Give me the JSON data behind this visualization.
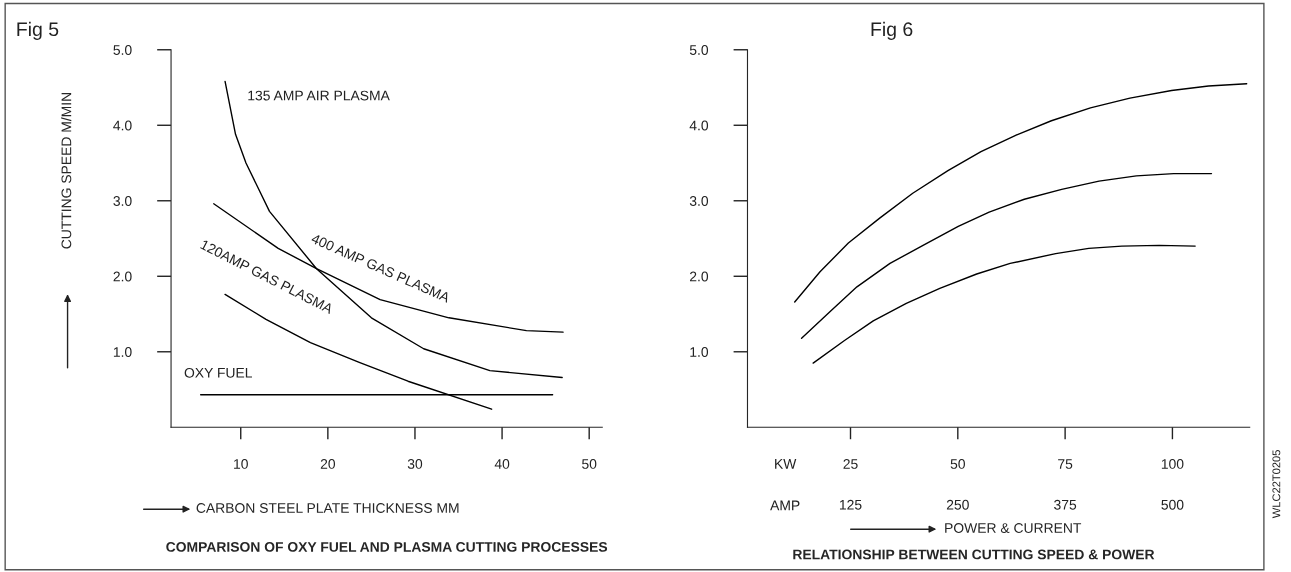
{
  "chart_data": [
    {
      "type": "line",
      "title": "COMPARISON OF OXY FUEL AND PLASMA CUTTING PROCESSES",
      "xlabel": "CARBON STEEL PLATE THICKNESS MM",
      "ylabel": "CUTTING SPEED M/MIN",
      "xlim": [
        2,
        51.5
      ],
      "xticks": [
        10,
        20,
        30,
        40,
        50
      ],
      "ylim": [
        0,
        5
      ],
      "yticks": [
        {
          "value": 1,
          "label": "1.0"
        },
        {
          "value": 2,
          "label": "2.0"
        },
        {
          "value": 3,
          "label": "3.0"
        },
        {
          "value": 4,
          "label": "4.0"
        },
        {
          "value": 5,
          "label": "5.0"
        }
      ],
      "annotations": [
        "Fig 5"
      ],
      "series": [
        {
          "name": "135 AMP AIR PLASMA",
          "color": "#000000",
          "x": [
            8.2,
            9.4,
            10.6,
            13.3,
            18.7,
            25,
            31,
            38.6,
            46.9
          ],
          "values": [
            4.58,
            3.88,
            3.5,
            2.86,
            2.1,
            1.45,
            1.04,
            0.75,
            0.66
          ]
        },
        {
          "name": "400 AMP GAS PLASMA",
          "color": "#000000",
          "x": [
            6.9,
            14.3,
            18.7,
            26,
            33.9,
            42.8,
            47
          ],
          "values": [
            2.96,
            2.37,
            2.1,
            1.69,
            1.45,
            1.28,
            1.26
          ]
        },
        {
          "name": "120AMP GAS PLASMA",
          "color": "#000000",
          "x": [
            8.2,
            12.9,
            18,
            23.6,
            29.2,
            38.8
          ],
          "values": [
            1.76,
            1.43,
            1.12,
            0.86,
            0.61,
            0.24
          ]
        },
        {
          "name": "OXY FUEL",
          "color": "#000000",
          "x": [
            5.4,
            45.8
          ],
          "values": [
            0.43,
            0.43
          ]
        }
      ]
    },
    {
      "type": "line",
      "title": "RELATIONSHIP BETWEEN CUTTING SPEED & POWER",
      "xlabel": "POWER & CURRENT",
      "xlim": [
        1,
        118
      ],
      "xticks": [
        25,
        50,
        75,
        100
      ],
      "x2lim": [
        5,
        590
      ],
      "x2ticks": [
        125,
        250,
        375,
        500
      ],
      "ylim": [
        0,
        5
      ],
      "yticks": [
        {
          "value": 1,
          "label": "1.0"
        },
        {
          "value": 2,
          "label": "2.0"
        },
        {
          "value": 3,
          "label": "3.0"
        },
        {
          "value": 4,
          "label": "4.0"
        },
        {
          "value": 5,
          "label": "5.0"
        }
      ],
      "annotations": [
        "Fig 6",
        "KW",
        "AMP",
        "WLC22T0205"
      ],
      "series": [
        {
          "color": "#000000",
          "x": [
            12.0,
            17.9,
            24.5,
            31.8,
            39.5,
            47.7,
            55.4,
            63.6,
            71.8,
            80.9,
            90.1,
            99.8,
            108.4,
            117.3
          ],
          "values": [
            1.66,
            2.06,
            2.44,
            2.77,
            3.1,
            3.4,
            3.65,
            3.87,
            4.06,
            4.23,
            4.36,
            4.46,
            4.52,
            4.55
          ]
        },
        {
          "color": "#000000",
          "x": [
            13.6,
            20.2,
            26.5,
            34.2,
            41.9,
            50.1,
            57.3,
            65.5,
            74.2,
            82.9,
            91.6,
            100.3,
            109.1
          ],
          "values": [
            1.18,
            1.53,
            1.86,
            2.17,
            2.41,
            2.66,
            2.85,
            3.02,
            3.15,
            3.26,
            3.33,
            3.36,
            3.36
          ]
        },
        {
          "color": "#000000",
          "x": [
            16.3,
            23.6,
            30.3,
            38.0,
            45.8,
            54.4,
            62.2,
            72.8,
            80.5,
            88.2,
            96.9,
            105.3
          ],
          "values": [
            0.85,
            1.15,
            1.41,
            1.64,
            1.84,
            2.03,
            2.17,
            2.3,
            2.37,
            2.4,
            2.41,
            2.4
          ]
        }
      ]
    }
  ]
}
